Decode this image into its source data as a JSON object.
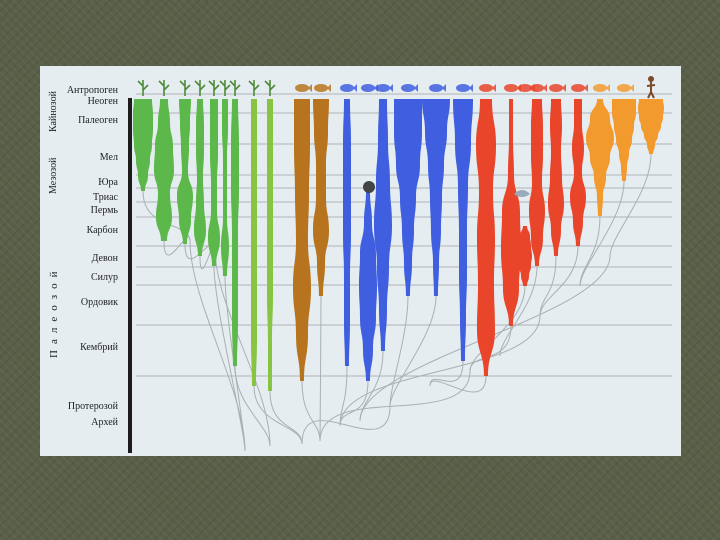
{
  "periods": [
    {
      "key": "anthropogen",
      "label": "Антропоген"
    },
    {
      "key": "neogen",
      "label": "Неоген"
    },
    {
      "key": "paleogen",
      "label": "Палеоген"
    },
    {
      "key": "mel",
      "label": "Мел"
    },
    {
      "key": "jura",
      "label": "Юра"
    },
    {
      "key": "trias",
      "label": "Триас"
    },
    {
      "key": "perm",
      "label": "Пермь"
    },
    {
      "key": "karbon",
      "label": "Карбон"
    },
    {
      "key": "devon",
      "label": "Девон"
    },
    {
      "key": "silur",
      "label": "Силур"
    },
    {
      "key": "ordovik",
      "label": "Ордовик"
    },
    {
      "key": "kembriy",
      "label": "Кембрий"
    },
    {
      "key": "proterozoy",
      "label": "Протерозой"
    },
    {
      "key": "arkhey",
      "label": "Архей"
    }
  ],
  "eras": {
    "cenozoic": "Кайнозой",
    "mesozoic": "Мезозой",
    "paleozoic": "Палеозой"
  },
  "colors": {
    "plants_green": "#5cb84a",
    "plants_lightgreen": "#86c442",
    "fungi_brown": "#b8731e",
    "invertebrates_blue": "#3f5fe0",
    "fishes_red": "#e8452b",
    "reptiles_orange": "#f39a2e",
    "tree_lines": "#a9b0b4",
    "period_lines": "#aeb4b8",
    "timeline_bar": "#1c1c1c",
    "panel_bg": "#e5edf1"
  },
  "icons": [
    "algae-icon",
    "plant-icon",
    "fern-icon",
    "moss-icon",
    "horsetail-icon",
    "conifer-icon",
    "flower-icon",
    "grass-icon",
    "mushroom-icon",
    "coral-icon",
    "sponge-icon",
    "starfish-icon",
    "worm-icon",
    "insect-icon",
    "crustacean-icon",
    "snail-icon",
    "squid-icon",
    "echinoderm-icon",
    "fish-icon",
    "shark-icon",
    "amphibian-icon",
    "dolphin-icon",
    "tropical-fish-icon",
    "turtle-icon",
    "bird-icon",
    "human-icon"
  ]
}
